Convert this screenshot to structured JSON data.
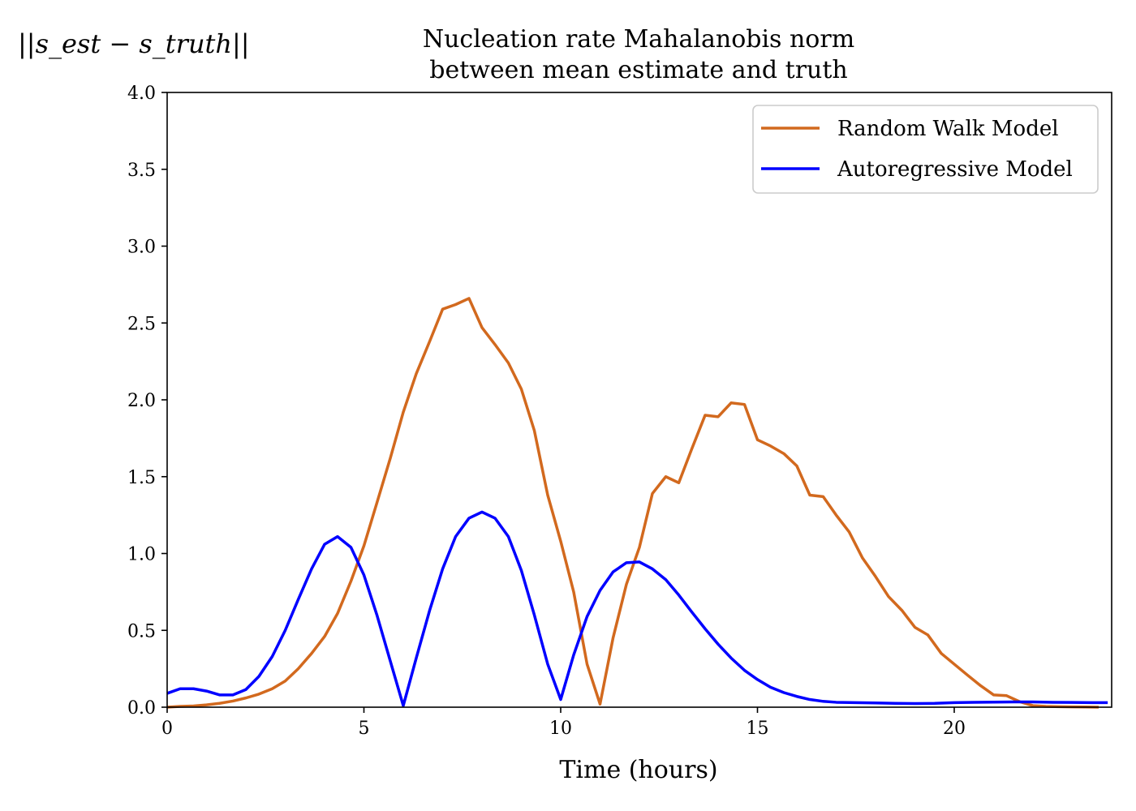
{
  "chart_data": {
    "type": "line",
    "title_line1": "Nucleation rate Mahalanobis norm",
    "title_line2": "between mean estimate and truth",
    "xlabel": "Time (hours)",
    "ylabel": "||s_est − s_truth||",
    "xlim": [
      0,
      24
    ],
    "ylim": [
      0,
      4.0
    ],
    "xticks": [
      0,
      5,
      10,
      15,
      20
    ],
    "xtick_labels": [
      "0",
      "5",
      "10",
      "15",
      "20"
    ],
    "yticks": [
      0,
      0.5,
      1.0,
      1.5,
      2.0,
      2.5,
      3.0,
      3.5,
      4.0
    ],
    "ytick_labels": [
      "0.0",
      "0.5",
      "1.0",
      "1.5",
      "2.0",
      "2.5",
      "3.0",
      "3.5",
      "4.0"
    ],
    "grid": false,
    "legend_position": "top-right",
    "series": [
      {
        "name": "Random Walk Model",
        "color": "#d2691e",
        "x": [
          0,
          0.33,
          0.67,
          1.0,
          1.33,
          1.67,
          2.0,
          2.33,
          2.67,
          3.0,
          3.33,
          3.67,
          4.0,
          4.33,
          4.67,
          5.0,
          5.33,
          5.67,
          6.0,
          6.33,
          6.67,
          7.0,
          7.33,
          7.67,
          8.0,
          8.33,
          8.67,
          9.0,
          9.33,
          9.67,
          10.0,
          10.33,
          10.67,
          11.0,
          11.33,
          11.67,
          12.0,
          12.33,
          12.67,
          13.0,
          13.33,
          13.67,
          14.0,
          14.33,
          14.67,
          15.0,
          15.33,
          15.67,
          16.0,
          16.33,
          16.67,
          17.0,
          17.33,
          17.67,
          18.0,
          18.33,
          18.67,
          19.0,
          19.33,
          19.67,
          20.0,
          20.33,
          20.67,
          21.0,
          21.33,
          21.67,
          22.0,
          22.33,
          22.67,
          23.0,
          23.33,
          23.67
        ],
        "y": [
          0.0,
          0.005,
          0.008,
          0.015,
          0.025,
          0.04,
          0.06,
          0.085,
          0.12,
          0.17,
          0.25,
          0.35,
          0.46,
          0.61,
          0.82,
          1.05,
          1.33,
          1.62,
          1.92,
          2.17,
          2.38,
          2.59,
          2.62,
          2.66,
          2.47,
          2.36,
          2.24,
          2.07,
          1.8,
          1.38,
          1.08,
          0.75,
          0.28,
          0.02,
          0.45,
          0.8,
          1.04,
          1.39,
          1.5,
          1.46,
          1.68,
          1.9,
          1.89,
          1.98,
          1.97,
          1.74,
          1.7,
          1.65,
          1.57,
          1.38,
          1.37,
          1.25,
          1.14,
          0.97,
          0.85,
          0.72,
          0.63,
          0.52,
          0.47,
          0.35,
          0.28,
          0.21,
          0.14,
          0.08,
          0.075,
          0.035,
          0.01,
          0.005,
          0.003,
          0.002,
          0.001,
          0.0
        ]
      },
      {
        "name": "Autoregressive Model",
        "color": "#0000ff",
        "x": [
          0,
          0.33,
          0.67,
          1.0,
          1.33,
          1.67,
          2.0,
          2.33,
          2.67,
          3.0,
          3.33,
          3.67,
          4.0,
          4.33,
          4.67,
          5.0,
          5.33,
          5.67,
          6.0,
          6.33,
          6.67,
          7.0,
          7.33,
          7.67,
          8.0,
          8.33,
          8.67,
          9.0,
          9.33,
          9.67,
          10.0,
          10.33,
          10.67,
          11.0,
          11.33,
          11.67,
          12.0,
          12.33,
          12.67,
          13.0,
          13.33,
          13.67,
          14.0,
          14.33,
          14.67,
          15.0,
          15.33,
          15.67,
          16.0,
          16.33,
          16.67,
          17.0,
          17.5,
          18.0,
          18.5,
          19.0,
          19.5,
          20.0,
          20.5,
          21.0,
          21.5,
          22.0,
          22.5,
          23.0,
          23.5,
          23.9
        ],
        "y": [
          0.09,
          0.12,
          0.12,
          0.105,
          0.08,
          0.08,
          0.115,
          0.2,
          0.33,
          0.5,
          0.7,
          0.9,
          1.06,
          1.11,
          1.04,
          0.86,
          0.6,
          0.3,
          0.01,
          0.32,
          0.63,
          0.9,
          1.11,
          1.23,
          1.27,
          1.23,
          1.11,
          0.89,
          0.6,
          0.28,
          0.05,
          0.34,
          0.59,
          0.76,
          0.88,
          0.94,
          0.945,
          0.9,
          0.83,
          0.73,
          0.62,
          0.51,
          0.41,
          0.32,
          0.24,
          0.18,
          0.13,
          0.095,
          0.07,
          0.05,
          0.038,
          0.032,
          0.03,
          0.028,
          0.025,
          0.024,
          0.025,
          0.03,
          0.032,
          0.033,
          0.034,
          0.034,
          0.032,
          0.031,
          0.03,
          0.03
        ]
      }
    ]
  }
}
